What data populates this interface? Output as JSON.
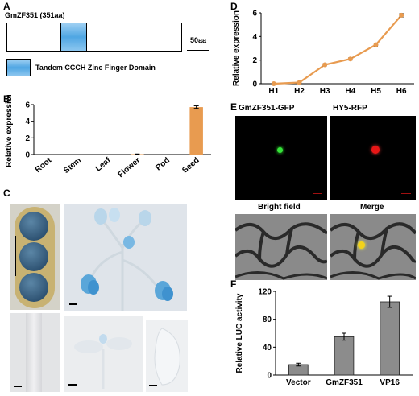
{
  "panels": {
    "A": {
      "label": "A",
      "protein": "GmZF351 (351aa)",
      "scale": "50aa",
      "legend": "Tandem CCCH Zinc Finger Domain",
      "domain_color": "#5aaee6"
    },
    "B": {
      "label": "B"
    },
    "C": {
      "label": "C"
    },
    "D": {
      "label": "D"
    },
    "E": {
      "label": "E",
      "titles": {
        "gfp": "GmZF351-GFP",
        "rfp": "HY5-RFP",
        "bright": "Bright field",
        "merge": "Merge"
      }
    },
    "F": {
      "label": "F"
    }
  },
  "colors": {
    "orange": "#e89b50",
    "gray": "#8c8c8c",
    "blue": "#4fa6d8"
  },
  "chart_data": [
    {
      "id": "B",
      "type": "bar",
      "ylabel": "Relative expression",
      "categories": [
        "Root",
        "Stem",
        "Leaf",
        "Flower",
        "Pod",
        "Seed"
      ],
      "values": [
        0,
        0,
        0,
        0.05,
        0,
        5.7
      ],
      "errors": [
        0,
        0,
        0,
        0.02,
        0,
        0.15
      ],
      "ylim": [
        0,
        6
      ],
      "yticks": [
        0,
        2,
        4,
        6
      ],
      "color": "#e89b50"
    },
    {
      "id": "D",
      "type": "line",
      "ylabel": "Relative expression",
      "categories": [
        "H1",
        "H2",
        "H3",
        "H4",
        "H5",
        "H6"
      ],
      "values": [
        0,
        0.1,
        1.6,
        2.1,
        3.3,
        5.8
      ],
      "errors": [
        0,
        0.05,
        0.1,
        0.1,
        0.12,
        0.15
      ],
      "ylim": [
        0,
        6
      ],
      "yticks": [
        0,
        2,
        4,
        6
      ],
      "color": "#e89b50"
    },
    {
      "id": "F",
      "type": "bar",
      "ylabel": "Relative LUC activity",
      "categories": [
        "Vector",
        "GmZF351",
        "VP16"
      ],
      "values": [
        15,
        55,
        105
      ],
      "errors": [
        2,
        5,
        8
      ],
      "ylim": [
        0,
        120
      ],
      "yticks": [
        0,
        40,
        80,
        120
      ],
      "color": "#8c8c8c"
    }
  ]
}
